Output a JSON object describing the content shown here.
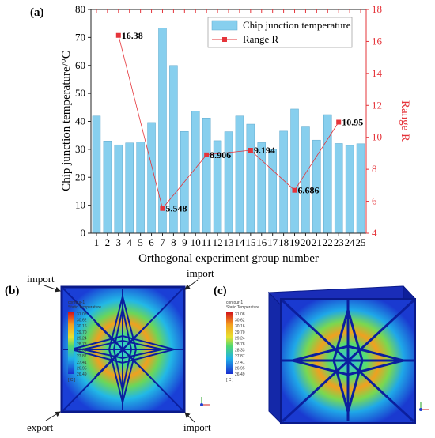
{
  "chart_data": {
    "type": "bar+line",
    "panel_label": "(a)",
    "categories": [
      "1",
      "2",
      "3",
      "4",
      "5",
      "6",
      "7",
      "8",
      "9",
      "10",
      "11",
      "12",
      "13",
      "14",
      "15",
      "16",
      "17",
      "18",
      "19",
      "20",
      "21",
      "22",
      "23",
      "24",
      "25"
    ],
    "series": [
      {
        "name": "Chip junction temperature",
        "kind": "bar",
        "axis": "left",
        "color": "#87cfee",
        "values": [
          41.9,
          33.0,
          31.6,
          32.3,
          32.6,
          39.6,
          73.4,
          60.0,
          36.4,
          43.6,
          41.2,
          33.1,
          36.3,
          41.9,
          39.0,
          32.4,
          30.0,
          36.5,
          44.4,
          38.0,
          33.3,
          42.4,
          32.1,
          31.4,
          32.0
        ]
      },
      {
        "name": "Range R",
        "kind": "line",
        "axis": "right",
        "color": "#e5343a",
        "points": [
          {
            "x": 3,
            "y": 16.38,
            "label": "16.38"
          },
          {
            "x": 7,
            "y": 5.548,
            "label": "5.548"
          },
          {
            "x": 11,
            "y": 8.906,
            "label": "8.906"
          },
          {
            "x": 15,
            "y": 9.194,
            "label": "9.194"
          },
          {
            "x": 19,
            "y": 6.686,
            "label": "6.686"
          },
          {
            "x": 23,
            "y": 10.95,
            "label": "10.95"
          }
        ]
      }
    ],
    "xlabel": "Orthogonal experiment group number",
    "ylabel_left": "Chip junction temperature/°C",
    "ylabel_right": "Range R",
    "ylim_left": [
      0,
      80
    ],
    "yticks_left": [
      "0",
      "10",
      "20",
      "30",
      "40",
      "50",
      "60",
      "70",
      "80"
    ],
    "ylim_right": [
      4,
      18
    ],
    "yticks_right": [
      "4",
      "6",
      "8",
      "10",
      "12",
      "14",
      "16",
      "18"
    ],
    "legend_position": "top-right",
    "grid": false
  },
  "contour_panels": {
    "panel_b_label": "(b)",
    "panel_c_label": "(c)",
    "port_labels": {
      "import_top_left": "import",
      "import_top_right": "import",
      "export_bottom_left": "export",
      "import_bottom_right": "import"
    },
    "colorbar": {
      "title_line1": "contour-1",
      "title_line2": "Static Temperature",
      "values": [
        "31.08",
        "30.62",
        "30.16",
        "29.70",
        "29.24",
        "28.78",
        "28.33",
        "27.87",
        "27.41",
        "26.95",
        "26.49"
      ],
      "unit": "[ C ]"
    }
  }
}
